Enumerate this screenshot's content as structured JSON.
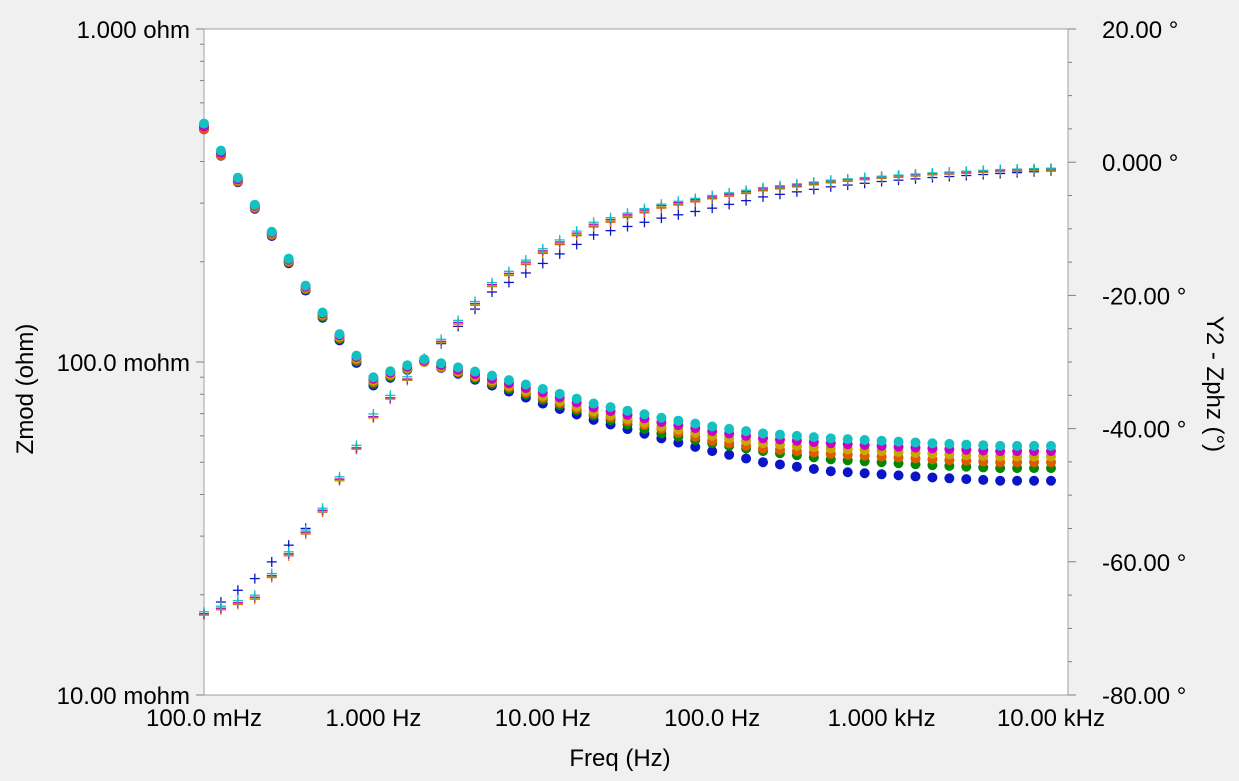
{
  "chart_data": {
    "type": "scatter",
    "title": "",
    "xlabel": "Freq (Hz)",
    "ylabel": "Zmod (ohm)",
    "y2label": "Y2 - Zphz (°)",
    "x_scale": "log",
    "y_scale": "log",
    "xlim": [
      0.1,
      12600
    ],
    "ylim": [
      0.01,
      1.0
    ],
    "y2lim": [
      -80,
      20
    ],
    "x_ticks": [
      {
        "value": 0.1,
        "label": "100.0 mHz"
      },
      {
        "value": 1,
        "label": "1.000 Hz"
      },
      {
        "value": 10,
        "label": "10.00 Hz"
      },
      {
        "value": 100,
        "label": "100.0 Hz"
      },
      {
        "value": 1000,
        "label": "1.000 kHz"
      },
      {
        "value": 10000,
        "label": "10.00 kHz"
      }
    ],
    "y_ticks": [
      {
        "value": 1.0,
        "label": "1.000 ohm"
      },
      {
        "value": 0.1,
        "label": "100.0 mohm"
      },
      {
        "value": 0.01,
        "label": "10.00 mohm"
      }
    ],
    "y2_ticks": [
      {
        "value": 20,
        "label": "20.00 °"
      },
      {
        "value": 0,
        "label": "0.000 °"
      },
      {
        "value": -20,
        "label": "-20.00 °"
      },
      {
        "value": -40,
        "label": "-40.00 °"
      },
      {
        "value": -60,
        "label": "-60.00 °"
      },
      {
        "value": -80,
        "label": "-80.00 °"
      }
    ],
    "legend": "none",
    "grid": false,
    "marker_zmod": "filled-circle",
    "marker_phase": "plus",
    "series_colors": [
      "#0a14c8",
      "#008a00",
      "#e05a00",
      "#c8a800",
      "#c800c8",
      "#12c2c2"
    ],
    "series": [
      {
        "color": "#0a14c8",
        "zmod": {
          "x": [
            0.1,
            0.2,
            0.5,
            1,
            2,
            5,
            10,
            20,
            50,
            100,
            200,
            500,
            1000,
            2000,
            5000,
            10000
          ],
          "y": [
            0.5,
            0.288,
            0.136,
            0.085,
            0.1,
            0.085,
            0.075,
            0.067,
            0.059,
            0.054,
            0.05,
            0.047,
            0.046,
            0.045,
            0.044,
            0.044
          ]
        },
        "phase": {
          "x": [
            0.1,
            0.2,
            0.5,
            1,
            2,
            5,
            10,
            20,
            50,
            100,
            200,
            500,
            1000,
            2000,
            5000,
            10000
          ],
          "y": [
            -67.8,
            -62.5,
            -52.5,
            -38.2,
            -29.8,
            -19.5,
            -15.2,
            -10.9,
            -8.4,
            -6.9,
            -5.2,
            -3.7,
            -2.9,
            -2.3,
            -1.7,
            -1.3
          ]
        }
      },
      {
        "color": "#008a00",
        "zmod": {
          "x": [
            0.1,
            0.2,
            0.5,
            1,
            2,
            5,
            10,
            20,
            50,
            100,
            200,
            500,
            1000,
            2000,
            5000,
            10000
          ],
          "y": [
            0.5,
            0.29,
            0.137,
            0.086,
            0.1,
            0.086,
            0.077,
            0.069,
            0.061,
            0.057,
            0.054,
            0.051,
            0.05,
            0.049,
            0.048,
            0.048
          ]
        },
        "phase": {
          "x": [
            0.1,
            0.2,
            0.5,
            1,
            2,
            5,
            10,
            20,
            50,
            100,
            200,
            500,
            1000,
            2000,
            5000,
            10000
          ],
          "y": [
            -67.8,
            -65.4,
            -52.4,
            -38.3,
            -29.9,
            -18.6,
            -13.6,
            -9.6,
            -6.8,
            -5.4,
            -4.2,
            -3.0,
            -2.4,
            -1.9,
            -1.4,
            -1.2
          ]
        }
      },
      {
        "color": "#e05a00",
        "zmod": {
          "x": [
            0.1,
            0.2,
            0.5,
            1,
            2,
            5,
            10,
            20,
            50,
            100,
            200,
            500,
            1000,
            2000,
            5000,
            10000
          ],
          "y": [
            0.5,
            0.29,
            0.138,
            0.087,
            0.1,
            0.087,
            0.078,
            0.07,
            0.063,
            0.058,
            0.055,
            0.053,
            0.052,
            0.051,
            0.05,
            0.05
          ]
        },
        "phase": {
          "x": [
            0.1,
            0.2,
            0.5,
            1,
            2,
            5,
            10,
            20,
            50,
            100,
            200,
            500,
            1000,
            2000,
            5000,
            10000
          ],
          "y": [
            -68.0,
            -65.6,
            -52.6,
            -38.4,
            -29.9,
            -18.7,
            -13.7,
            -9.7,
            -6.9,
            -5.5,
            -4.3,
            -3.1,
            -2.4,
            -1.9,
            -1.4,
            -1.2
          ]
        }
      },
      {
        "color": "#c8a800",
        "zmod": {
          "x": [
            0.1,
            0.2,
            0.5,
            1,
            2,
            5,
            10,
            20,
            50,
            100,
            200,
            500,
            1000,
            2000,
            5000,
            10000
          ],
          "y": [
            0.51,
            0.292,
            0.139,
            0.088,
            0.1,
            0.088,
            0.079,
            0.071,
            0.064,
            0.06,
            0.057,
            0.055,
            0.054,
            0.053,
            0.052,
            0.052
          ]
        },
        "phase": {
          "x": [
            0.1,
            0.2,
            0.5,
            1,
            2,
            5,
            10,
            20,
            50,
            100,
            200,
            500,
            1000,
            2000,
            5000,
            10000
          ],
          "y": [
            -67.9,
            -65.5,
            -52.5,
            -38.4,
            -29.8,
            -18.6,
            -13.5,
            -9.5,
            -6.7,
            -5.3,
            -4.1,
            -2.9,
            -2.3,
            -1.8,
            -1.3,
            -1.1
          ]
        }
      },
      {
        "color": "#c800c8",
        "zmod": {
          "x": [
            0.1,
            0.2,
            0.5,
            1,
            2,
            5,
            10,
            20,
            50,
            100,
            200,
            500,
            1000,
            2000,
            5000,
            10000
          ],
          "y": [
            0.51,
            0.294,
            0.14,
            0.089,
            0.101,
            0.089,
            0.081,
            0.073,
            0.066,
            0.062,
            0.059,
            0.057,
            0.056,
            0.055,
            0.054,
            0.054
          ]
        },
        "phase": {
          "x": [
            0.1,
            0.2,
            0.5,
            1,
            2,
            5,
            10,
            20,
            50,
            100,
            200,
            500,
            1000,
            2000,
            5000,
            10000
          ],
          "y": [
            -67.8,
            -65.3,
            -52.3,
            -38.2,
            -29.7,
            -18.4,
            -13.3,
            -9.3,
            -6.5,
            -5.2,
            -4.0,
            -2.8,
            -2.2,
            -1.7,
            -1.2,
            -1.0
          ]
        }
      },
      {
        "color": "#12c2c2",
        "zmod": {
          "x": [
            0.1,
            0.2,
            0.5,
            1,
            2,
            5,
            10,
            20,
            50,
            100,
            200,
            500,
            1000,
            2000,
            5000,
            10000
          ],
          "y": [
            0.52,
            0.296,
            0.141,
            0.09,
            0.102,
            0.091,
            0.083,
            0.075,
            0.068,
            0.064,
            0.061,
            0.059,
            0.058,
            0.057,
            0.056,
            0.056
          ]
        },
        "phase": {
          "x": [
            0.1,
            0.2,
            0.5,
            1,
            2,
            5,
            10,
            20,
            50,
            100,
            200,
            500,
            1000,
            2000,
            5000,
            10000
          ],
          "y": [
            -67.5,
            -65.0,
            -52.0,
            -37.8,
            -29.4,
            -18.1,
            -13.0,
            -9.0,
            -6.3,
            -5.0,
            -3.8,
            -2.7,
            -2.1,
            -1.6,
            -1.1,
            -0.9
          ]
        }
      }
    ]
  }
}
